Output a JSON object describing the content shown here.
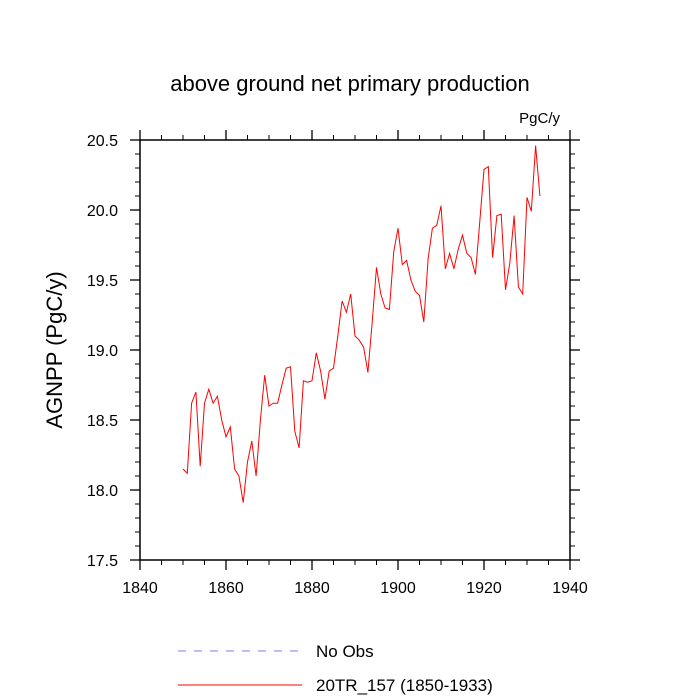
{
  "chart_data": {
    "type": "line",
    "title": "above ground net primary production",
    "units": "PgC/y",
    "xlabel": "",
    "ylabel": "AGNPP  (PgC/y)",
    "xlim": [
      1840,
      1940
    ],
    "ylim": [
      17.5,
      20.5
    ],
    "xticks": [
      1840,
      1860,
      1880,
      1900,
      1920,
      1940
    ],
    "yticks": [
      17.5,
      18.0,
      18.5,
      19.0,
      19.5,
      20.0,
      20.5
    ],
    "ytick_labels": [
      "17.5",
      "18.0",
      "18.5",
      "19.0",
      "19.5",
      "20.0",
      "20.5"
    ],
    "legend_position": "bottom",
    "series": [
      {
        "name": "No Obs",
        "color": "#7b7bff",
        "style": "dashed",
        "x": [],
        "values": []
      },
      {
        "name": "20TR_157 (1850-1933)",
        "color": "#ff0000",
        "style": "solid",
        "x": [
          1850,
          1851,
          1852,
          1853,
          1854,
          1855,
          1856,
          1857,
          1858,
          1859,
          1860,
          1861,
          1862,
          1863,
          1864,
          1865,
          1866,
          1867,
          1868,
          1869,
          1870,
          1871,
          1872,
          1873,
          1874,
          1875,
          1876,
          1877,
          1878,
          1879,
          1880,
          1881,
          1882,
          1883,
          1884,
          1885,
          1886,
          1887,
          1888,
          1889,
          1890,
          1891,
          1892,
          1893,
          1894,
          1895,
          1896,
          1897,
          1898,
          1899,
          1900,
          1901,
          1902,
          1903,
          1904,
          1905,
          1906,
          1907,
          1908,
          1909,
          1910,
          1911,
          1912,
          1913,
          1914,
          1915,
          1916,
          1917,
          1918,
          1919,
          1920,
          1921,
          1922,
          1923,
          1924,
          1925,
          1926,
          1927,
          1928,
          1929,
          1930,
          1931,
          1932,
          1933
        ],
        "values": [
          18.15,
          18.12,
          18.62,
          18.7,
          18.17,
          18.62,
          18.72,
          18.62,
          18.67,
          18.5,
          18.38,
          18.45,
          18.15,
          18.1,
          17.91,
          18.2,
          18.35,
          18.1,
          18.5,
          18.82,
          18.6,
          18.62,
          18.62,
          18.75,
          18.87,
          18.88,
          18.42,
          18.3,
          18.78,
          18.77,
          18.78,
          18.98,
          18.85,
          18.65,
          18.85,
          18.87,
          19.1,
          19.35,
          19.27,
          19.4,
          19.1,
          19.07,
          19.02,
          18.84,
          19.2,
          19.59,
          19.4,
          19.3,
          19.29,
          19.7,
          19.87,
          19.61,
          19.64,
          19.5,
          19.42,
          19.39,
          19.2,
          19.65,
          19.87,
          19.89,
          20.03,
          19.58,
          19.69,
          19.58,
          19.72,
          19.82,
          19.69,
          19.66,
          19.54,
          19.91,
          20.29,
          20.31,
          19.66,
          19.96,
          19.97,
          19.43,
          19.62,
          19.96,
          19.45,
          19.4,
          20.09,
          19.99,
          20.46,
          20.1
        ]
      }
    ]
  }
}
